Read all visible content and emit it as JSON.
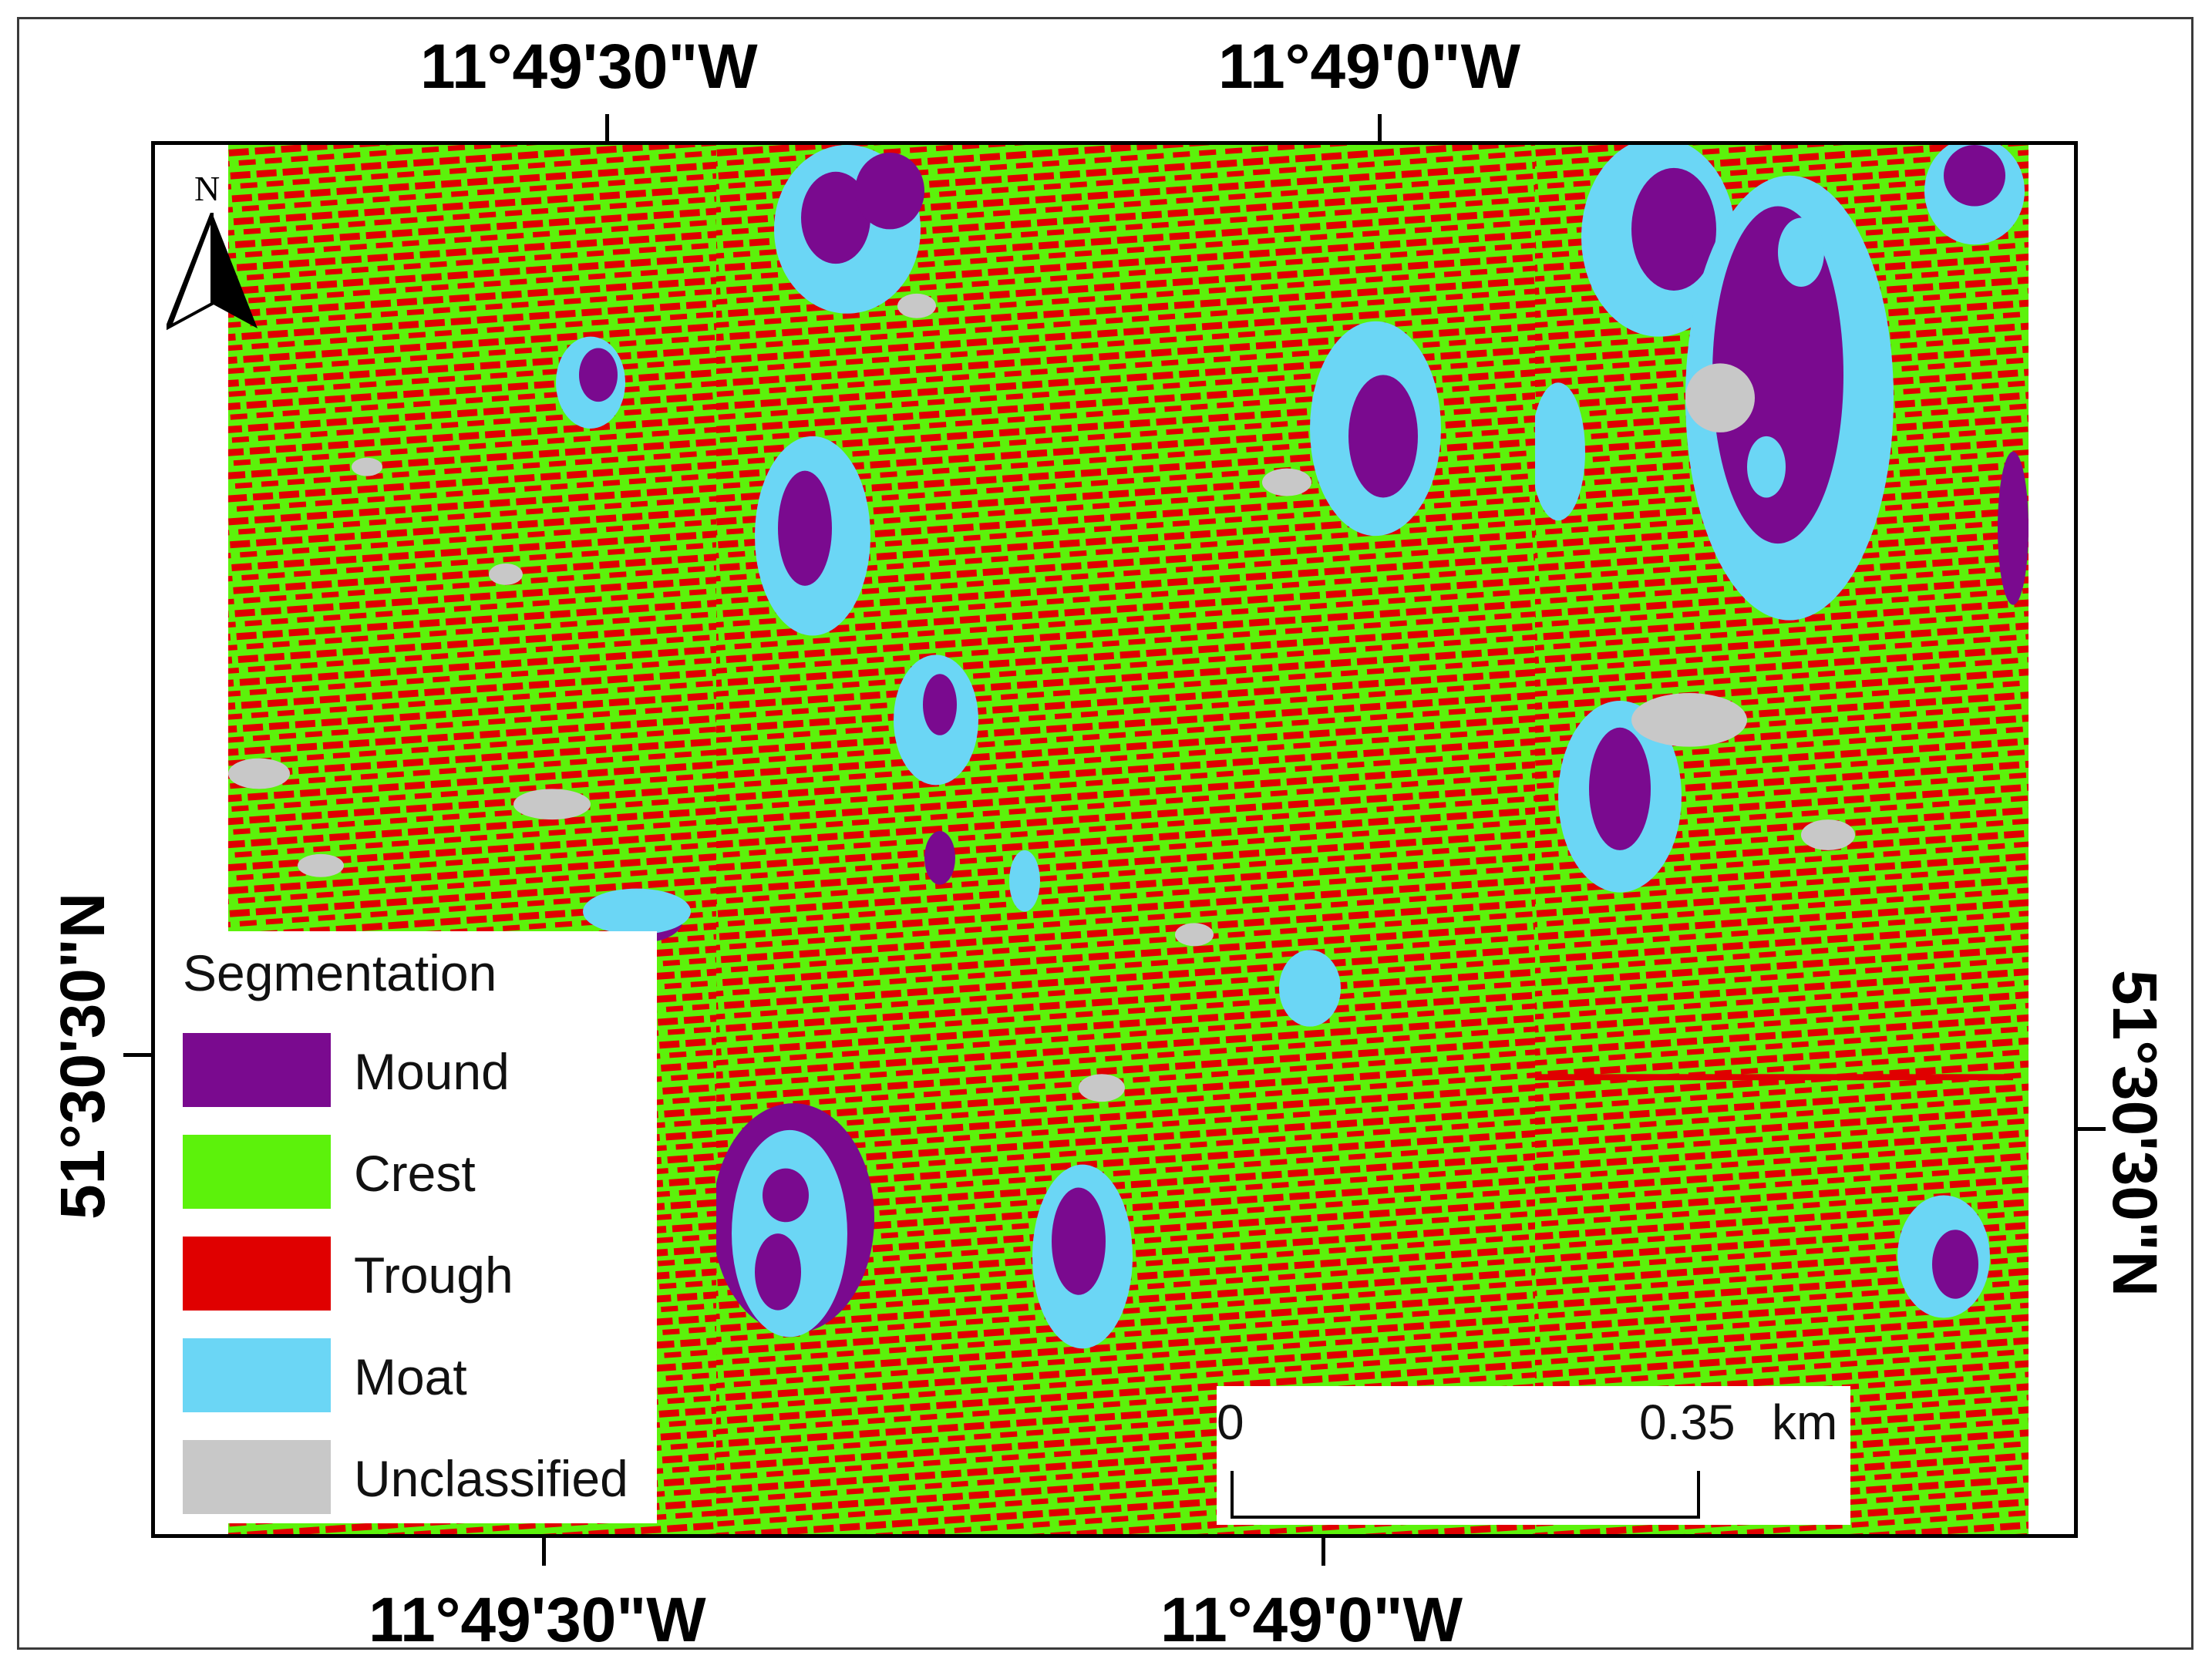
{
  "map": {
    "top_labels": [
      "11°49'30\"W",
      "11°49'0\"W"
    ],
    "bottom_labels": [
      "11°49'30\"W",
      "11°49'0\"W"
    ],
    "left_label": "51°30'30\"N",
    "right_label": "51°30'30\"N",
    "north_arrow": {
      "label": "N",
      "icon": "north-arrow-icon"
    }
  },
  "legend": {
    "title": "Segmentation",
    "items": [
      {
        "label": "Mound",
        "color": "#7a0a8f"
      },
      {
        "label": "Crest",
        "color": "#5cf20b"
      },
      {
        "label": "Trough",
        "color": "#e00000"
      },
      {
        "label": "Moat",
        "color": "#6bd6f5"
      },
      {
        "label": "Unclassified",
        "color": "#c8c8c8"
      }
    ]
  },
  "scale_bar": {
    "start_label": "0",
    "end_label": "0.35",
    "unit": "km"
  }
}
